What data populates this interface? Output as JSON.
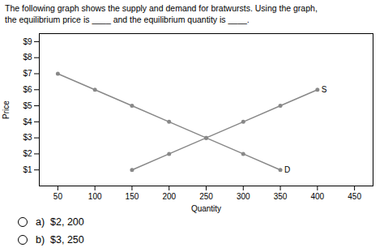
{
  "chart_data": {
    "type": "line",
    "title": "The following graph shows the supply and demand for bratwursts. Using the graph,",
    "subtitle": "the equilibrium price is ____ and the equilibrium quantity is ____.",
    "series": [
      {
        "name": "S",
        "color": "#888888",
        "marker": "circle",
        "x": [
          150,
          200,
          250,
          300,
          350,
          400
        ],
        "values": [
          1,
          2,
          3,
          4,
          5,
          6
        ]
      },
      {
        "name": "D",
        "color": "#888888",
        "marker": "circle",
        "x": [
          50,
          100,
          150,
          200,
          250,
          300,
          350
        ],
        "values": [
          7,
          6,
          5,
          4,
          3,
          2,
          1
        ]
      }
    ],
    "xlabel": "Quantity",
    "ylabel": "Price",
    "xlim": [
      25,
      475
    ],
    "ylim": [
      0,
      9.5
    ],
    "xticks": [
      50,
      100,
      150,
      200,
      250,
      300,
      350,
      400,
      450
    ],
    "yticks": [
      {
        "value": 1,
        "label": "$1"
      },
      {
        "value": 2,
        "label": "$2"
      },
      {
        "value": 3,
        "label": "$3"
      },
      {
        "value": 4,
        "label": "$4"
      },
      {
        "value": 5,
        "label": "$5"
      },
      {
        "value": 6,
        "label": "$6"
      },
      {
        "value": 7,
        "label": "$7"
      },
      {
        "value": 8,
        "label": "$8"
      },
      {
        "value": 9,
        "label": "$9"
      }
    ],
    "grid": false,
    "answers": [
      "a)  $2, 200",
      "b)  $3, 250"
    ]
  }
}
